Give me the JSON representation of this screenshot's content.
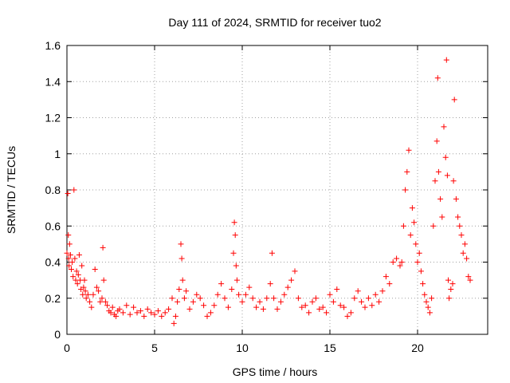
{
  "chart_data": {
    "type": "scatter",
    "title": "Day 111 of 2024, SRMTID for receiver tuo2",
    "xlabel": "GPS time / hours",
    "ylabel": "SRMTID / TECUs",
    "xlim": [
      0,
      24
    ],
    "ylim": [
      0,
      1.6
    ],
    "x_ticks": [
      0,
      5,
      10,
      15,
      20
    ],
    "x_tick_labels": [
      "0",
      "5",
      "10",
      "15",
      "20"
    ],
    "y_ticks": [
      0,
      0.2,
      0.4,
      0.6,
      0.8,
      1,
      1.2,
      1.4,
      1.6
    ],
    "y_tick_labels": [
      "0",
      "0.2",
      "0.4",
      "0.6",
      "0.8",
      "1",
      "1.2",
      "1.4",
      "1.6"
    ],
    "grid": true,
    "marker": "+",
    "marker_color": "#ff0000",
    "series": [
      {
        "name": "SRMTID",
        "x": [
          0.0,
          0.05,
          0.08,
          0.1,
          0.12,
          0.15,
          0.2,
          0.25,
          0.3,
          0.35,
          0.4,
          0.45,
          0.5,
          0.55,
          0.6,
          0.65,
          0.7,
          0.75,
          0.8,
          0.85,
          0.9,
          0.95,
          1.0,
          1.05,
          1.1,
          1.2,
          1.3,
          1.4,
          1.5,
          1.6,
          1.7,
          1.8,
          1.9,
          2.0,
          2.05,
          2.1,
          2.2,
          2.3,
          2.4,
          2.5,
          2.6,
          2.7,
          2.8,
          2.9,
          3.0,
          3.2,
          3.4,
          3.6,
          3.8,
          4.0,
          4.2,
          4.4,
          4.6,
          4.8,
          5.0,
          5.2,
          5.4,
          5.6,
          5.8,
          6.0,
          6.1,
          6.2,
          6.3,
          6.4,
          6.5,
          6.55,
          6.6,
          6.7,
          6.8,
          7.0,
          7.2,
          7.4,
          7.6,
          7.8,
          8.0,
          8.2,
          8.4,
          8.6,
          8.8,
          9.0,
          9.2,
          9.4,
          9.5,
          9.55,
          9.6,
          9.65,
          9.7,
          9.8,
          10.0,
          10.2,
          10.4,
          10.6,
          10.8,
          11.0,
          11.2,
          11.4,
          11.6,
          11.7,
          11.8,
          12.0,
          12.2,
          12.4,
          12.6,
          12.8,
          13.0,
          13.2,
          13.4,
          13.6,
          13.8,
          14.0,
          14.2,
          14.4,
          14.6,
          14.8,
          15.0,
          15.2,
          15.4,
          15.6,
          15.8,
          16.0,
          16.2,
          16.4,
          16.6,
          16.8,
          17.0,
          17.2,
          17.4,
          17.6,
          17.8,
          18.0,
          18.2,
          18.4,
          18.6,
          18.8,
          19.0,
          19.1,
          19.2,
          19.3,
          19.4,
          19.5,
          19.6,
          19.7,
          19.8,
          19.9,
          20.0,
          20.1,
          20.2,
          20.3,
          20.4,
          20.5,
          20.6,
          20.7,
          20.8,
          20.9,
          21.0,
          21.1,
          21.15,
          21.2,
          21.3,
          21.4,
          21.5,
          21.6,
          21.65,
          21.7,
          21.75,
          21.8,
          21.9,
          22.0,
          22.05,
          22.1,
          22.2,
          22.3,
          22.4,
          22.5,
          22.6,
          22.7,
          22.8,
          22.9,
          23.0
        ],
        "y": [
          0.45,
          0.78,
          0.55,
          0.42,
          0.38,
          0.5,
          0.44,
          0.36,
          0.4,
          0.32,
          0.8,
          0.42,
          0.3,
          0.35,
          0.28,
          0.33,
          0.44,
          0.3,
          0.25,
          0.38,
          0.22,
          0.26,
          0.3,
          0.24,
          0.2,
          0.22,
          0.18,
          0.15,
          0.22,
          0.36,
          0.26,
          0.24,
          0.18,
          0.2,
          0.48,
          0.3,
          0.18,
          0.16,
          0.13,
          0.12,
          0.15,
          0.11,
          0.1,
          0.13,
          0.14,
          0.12,
          0.16,
          0.11,
          0.15,
          0.12,
          0.13,
          0.1,
          0.14,
          0.12,
          0.11,
          0.13,
          0.1,
          0.12,
          0.14,
          0.2,
          0.06,
          0.1,
          0.18,
          0.25,
          0.5,
          0.42,
          0.3,
          0.2,
          0.24,
          0.14,
          0.18,
          0.22,
          0.2,
          0.16,
          0.1,
          0.12,
          0.16,
          0.22,
          0.28,
          0.2,
          0.15,
          0.25,
          0.45,
          0.62,
          0.55,
          0.38,
          0.3,
          0.22,
          0.18,
          0.22,
          0.26,
          0.2,
          0.15,
          0.18,
          0.14,
          0.2,
          0.28,
          0.45,
          0.2,
          0.14,
          0.18,
          0.22,
          0.26,
          0.3,
          0.35,
          0.2,
          0.15,
          0.16,
          0.12,
          0.18,
          0.2,
          0.14,
          0.15,
          0.12,
          0.22,
          0.18,
          0.25,
          0.16,
          0.15,
          0.1,
          0.12,
          0.2,
          0.24,
          0.18,
          0.15,
          0.2,
          0.16,
          0.22,
          0.18,
          0.24,
          0.32,
          0.28,
          0.4,
          0.42,
          0.38,
          0.4,
          0.6,
          0.8,
          0.9,
          1.02,
          0.55,
          0.7,
          0.62,
          0.5,
          0.4,
          0.45,
          0.35,
          0.28,
          0.22,
          0.18,
          0.15,
          0.12,
          0.2,
          0.6,
          0.85,
          1.07,
          1.42,
          0.9,
          0.75,
          0.65,
          1.15,
          0.98,
          1.52,
          0.88,
          0.3,
          0.2,
          0.25,
          0.28,
          0.85,
          1.3,
          0.75,
          0.65,
          0.6,
          0.55,
          0.45,
          0.5,
          0.42,
          0.32,
          0.3
        ]
      }
    ]
  }
}
